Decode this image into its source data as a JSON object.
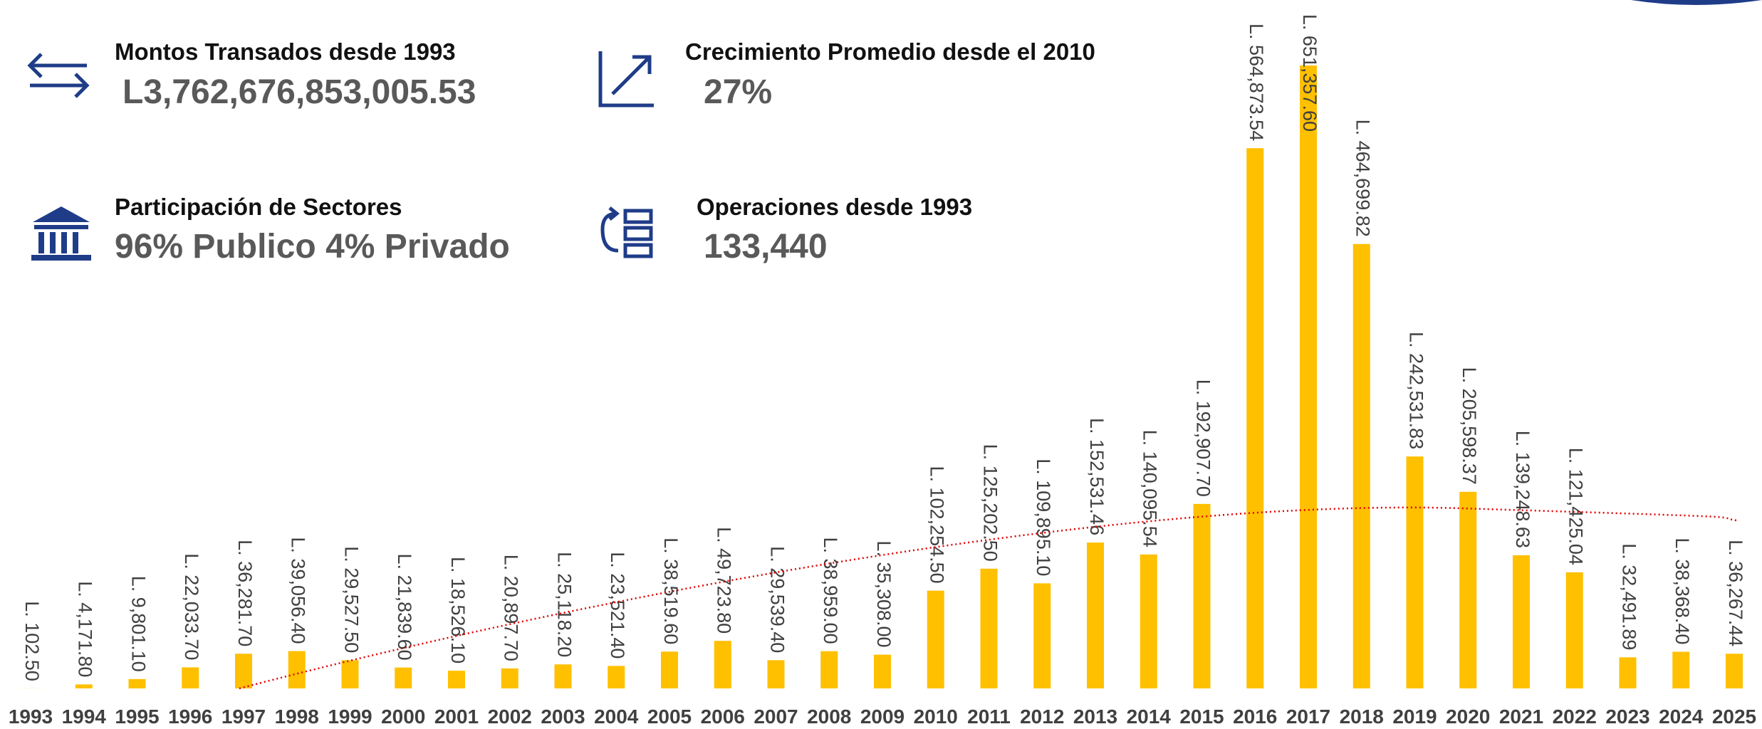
{
  "kpis": [
    {
      "title": "Montos Transados desde 1993",
      "value": "L3,762,676,853,005.53"
    },
    {
      "title": "Crecimiento Promedio desde el 2010",
      "value": "27%"
    },
    {
      "title": "Participación de Sectores",
      "value": "96% Publico 4% Privado"
    },
    {
      "title": "Operaciones desde 1993",
      "value": "133,440"
    }
  ],
  "chart_data": {
    "type": "bar",
    "color": "#ffc000",
    "categories": [
      "1993",
      "1994",
      "1995",
      "1996",
      "1997",
      "1998",
      "1999",
      "2000",
      "2001",
      "2002",
      "2003",
      "2004",
      "2005",
      "2006",
      "2007",
      "2008",
      "2009",
      "2010",
      "2011",
      "2012",
      "2013",
      "2014",
      "2015",
      "2016",
      "2017",
      "2018",
      "2019",
      "2020",
      "2021",
      "2022",
      "2023",
      "2024",
      "2025"
    ],
    "values": [
      102.5,
      4171.8,
      9801.1,
      22033.7,
      36281.7,
      39056.4,
      29527.5,
      21839.6,
      18526.1,
      20897.7,
      25118.2,
      23521.4,
      38519.6,
      49723.8,
      29539.4,
      38959.0,
      35308.0,
      102254.5,
      125202.5,
      109895.1,
      152531.46,
      140095.54,
      192907.7,
      564873.54,
      651357.6,
      464699.82,
      242531.83,
      205598.37,
      139248.63,
      121425.04,
      32491.89,
      38368.4,
      36267.44
    ],
    "value_labels": [
      "L. 102.50",
      "L. 4,171.80",
      "L. 9,801.10",
      "L. 22,033.70",
      "L. 36,281.70",
      "L. 39,056.40",
      "L. 29,527.50",
      "L. 21,839.60",
      "L. 18,526.10",
      "L. 20,897.70",
      "L. 25,118.20",
      "L. 23,521.40",
      "L. 38,519.60",
      "L. 49,723.80",
      "L. 29,539.40",
      "L. 38,959.00",
      "L. 35,308.00",
      "L. 102,254.50",
      "L. 125,202.50",
      "L. 109,895.10",
      "L. 152,531.46",
      "L. 140,095.54",
      "L. 192,907.70",
      "L. 564,873.54",
      "L. 651,357.60",
      "L. 464,699.82",
      "L. 242,531.83",
      "L. 205,598.37",
      "L. 139,248.63",
      "L. 121,425.04",
      "L. 32,491.89",
      "L. 38,368.40",
      "L. 36,267.44"
    ]
  }
}
